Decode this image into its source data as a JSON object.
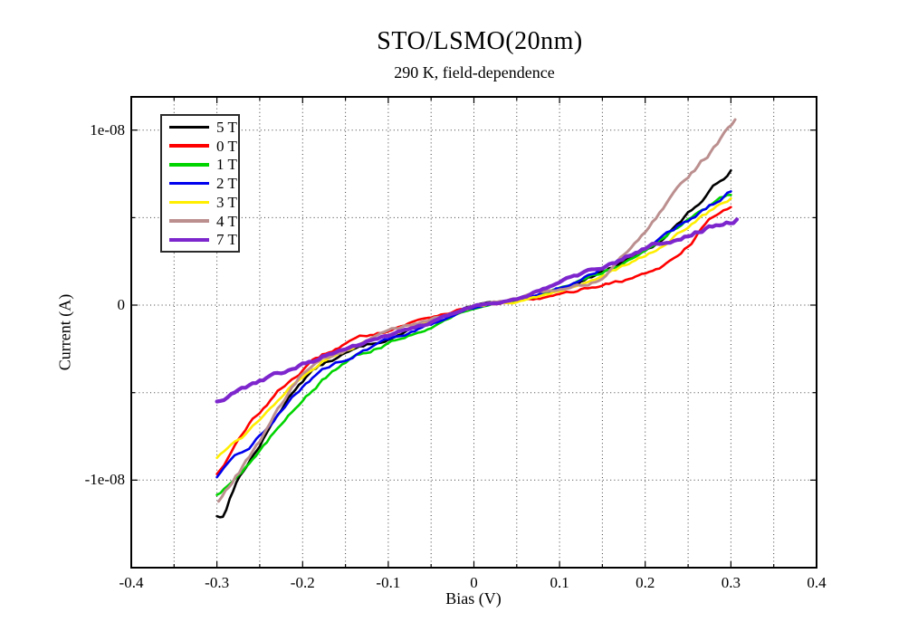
{
  "page": {
    "background": "#ffffff"
  },
  "chart_data": {
    "type": "line",
    "title": "STO/LSMO(20nm)",
    "subtitle": "290 K, field-dependence",
    "xlabel": "Bias (V)",
    "ylabel": "Current (A)",
    "xlim": [
      -0.4,
      0.4
    ],
    "ylim": [
      -1.5e-08,
      1.19e-08
    ],
    "x_ticks": [
      {
        "value": -0.4,
        "label": "-0.4"
      },
      {
        "value": -0.3,
        "label": "-0.3"
      },
      {
        "value": -0.2,
        "label": "-0.2"
      },
      {
        "value": -0.1,
        "label": "-0.1"
      },
      {
        "value": 0,
        "label": "0"
      },
      {
        "value": 0.1,
        "label": "0.1"
      },
      {
        "value": 0.2,
        "label": "0.2"
      },
      {
        "value": 0.3,
        "label": "0.3"
      },
      {
        "value": 0.4,
        "label": "0.4"
      }
    ],
    "y_ticks": [
      {
        "value": 1e-08,
        "label": "1e-08"
      },
      {
        "value": 0,
        "label": "0"
      },
      {
        "value": -1e-08,
        "label": "-1e-08"
      }
    ],
    "x_grid_step": 0.05,
    "y_grid_step": 5e-09,
    "grid_style": "dotted",
    "grid_color": "#3c3c3c",
    "axis_color": "#000000",
    "legend_position": "top-left",
    "series": [
      {
        "name": "5 T",
        "color": "#000000",
        "width": 2.6,
        "points": [
          [
            -0.3,
            -1.2e-08
          ],
          [
            -0.293,
            -1.21e-08
          ],
          [
            -0.285,
            -1.09e-08
          ],
          [
            -0.25,
            -8e-09
          ],
          [
            -0.2,
            -4.25e-09
          ],
          [
            -0.15,
            -2.8e-09
          ],
          [
            -0.1,
            -1.9e-09
          ],
          [
            -0.05,
            -1e-09
          ],
          [
            0.0,
            -1e-10
          ],
          [
            0.05,
            3.5e-10
          ],
          [
            0.1,
            9.5e-10
          ],
          [
            0.15,
            1.9e-09
          ],
          [
            0.2,
            3.1e-09
          ],
          [
            0.25,
            5.2e-09
          ],
          [
            0.3,
            7.7e-09
          ]
        ]
      },
      {
        "name": "0 T",
        "color": "#ff0000",
        "width": 2.6,
        "points": [
          [
            -0.3,
            -9.6e-09
          ],
          [
            -0.25,
            -6.1e-09
          ],
          [
            -0.2,
            -3.7e-09
          ],
          [
            -0.15,
            -2.2e-09
          ],
          [
            -0.1,
            -1.4e-09
          ],
          [
            -0.05,
            -6.5e-10
          ],
          [
            0.0,
            -1e-10
          ],
          [
            0.05,
            2e-10
          ],
          [
            0.1,
            5.5e-10
          ],
          [
            0.15,
            1.2e-09
          ],
          [
            0.2,
            1.8e-09
          ],
          [
            0.25,
            3.3e-09
          ],
          [
            0.27,
            4.7e-09
          ],
          [
            0.3,
            5.6e-09
          ]
        ]
      },
      {
        "name": "1 T",
        "color": "#00d400",
        "width": 2.6,
        "points": [
          [
            -0.3,
            -1.08e-08
          ],
          [
            -0.25,
            -8.4e-09
          ],
          [
            -0.2,
            -5.3e-09
          ],
          [
            -0.15,
            -3.35e-09
          ],
          [
            -0.1,
            -2.2e-09
          ],
          [
            -0.05,
            -1.2e-09
          ],
          [
            0.0,
            -1.5e-10
          ],
          [
            0.05,
            3e-10
          ],
          [
            0.1,
            9e-10
          ],
          [
            0.15,
            1.9e-09
          ],
          [
            0.2,
            3.2e-09
          ],
          [
            0.25,
            4.9e-09
          ],
          [
            0.3,
            6.3e-09
          ]
        ]
      },
      {
        "name": "2 T",
        "color": "#0000ee",
        "width": 2.6,
        "points": [
          [
            -0.3,
            -9.8e-09
          ],
          [
            -0.25,
            -7.5e-09
          ],
          [
            -0.2,
            -4.6e-09
          ],
          [
            -0.15,
            -3.05e-09
          ],
          [
            -0.1,
            -2e-09
          ],
          [
            -0.05,
            -1.1e-09
          ],
          [
            0.0,
            -1e-10
          ],
          [
            0.05,
            3e-10
          ],
          [
            0.1,
            1e-09
          ],
          [
            0.15,
            2.1e-09
          ],
          [
            0.2,
            3.3e-09
          ],
          [
            0.25,
            4.9e-09
          ],
          [
            0.3,
            6.5e-09
          ]
        ]
      },
      {
        "name": "3 T",
        "color": "#ffee00",
        "width": 2.6,
        "points": [
          [
            -0.3,
            -8.7e-09
          ],
          [
            -0.25,
            -6.5e-09
          ],
          [
            -0.2,
            -3.9e-09
          ],
          [
            -0.15,
            -2.6e-09
          ],
          [
            -0.1,
            -1.8e-09
          ],
          [
            -0.05,
            -9.5e-10
          ],
          [
            0.0,
            -1e-10
          ],
          [
            0.05,
            2.5e-10
          ],
          [
            0.1,
            8.5e-10
          ],
          [
            0.15,
            1.7e-09
          ],
          [
            0.2,
            2.8e-09
          ],
          [
            0.25,
            4.5e-09
          ],
          [
            0.3,
            6.1e-09
          ]
        ]
      },
      {
        "name": "4 T",
        "color": "#bc8f8f",
        "width": 3.0,
        "points": [
          [
            -0.298,
            -1.12e-08
          ],
          [
            -0.25,
            -7.8e-09
          ],
          [
            -0.2,
            -4e-09
          ],
          [
            -0.15,
            -2.55e-09
          ],
          [
            -0.1,
            -1.55e-09
          ],
          [
            -0.05,
            -8e-10
          ],
          [
            0.0,
            -5e-11
          ],
          [
            0.05,
            4e-10
          ],
          [
            0.1,
            1e-09
          ],
          [
            0.15,
            1.6e-09
          ],
          [
            0.175,
            2.9e-09
          ],
          [
            0.2,
            4.3e-09
          ],
          [
            0.25,
            7.4e-09
          ],
          [
            0.28,
            9e-09
          ],
          [
            0.305,
            1.06e-08
          ]
        ]
      },
      {
        "name": "7 T",
        "color": "#7d26cd",
        "width": 4.2,
        "points": [
          [
            -0.3,
            -5.5e-09
          ],
          [
            -0.25,
            -4.4e-09
          ],
          [
            -0.2,
            -3.4e-09
          ],
          [
            -0.15,
            -2.45e-09
          ],
          [
            -0.1,
            -1.75e-09
          ],
          [
            -0.05,
            -1e-09
          ],
          [
            0.0,
            -5e-11
          ],
          [
            0.05,
            3e-10
          ],
          [
            0.1,
            1.3e-09
          ],
          [
            0.15,
            2.2e-09
          ],
          [
            0.2,
            3.2e-09
          ],
          [
            0.25,
            4.1e-09
          ],
          [
            0.307,
            4.9e-09
          ]
        ]
      }
    ]
  }
}
